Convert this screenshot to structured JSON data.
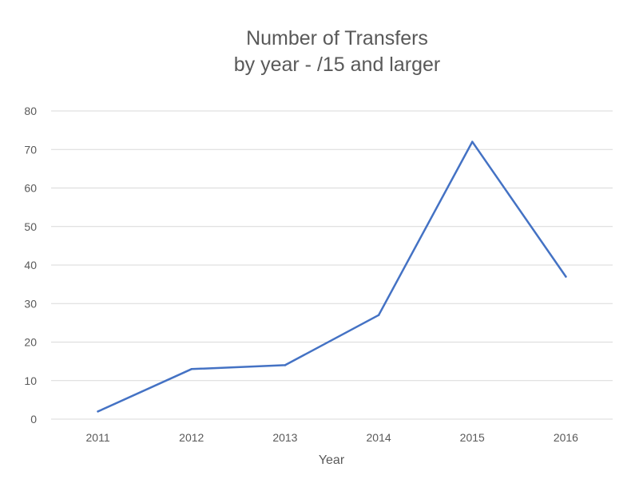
{
  "chart_data": {
    "type": "line",
    "title_lines": [
      "Number of Transfers",
      "by year - /15 and larger"
    ],
    "xlabel": "Year",
    "ylabel": "",
    "categories": [
      "2011",
      "2012",
      "2013",
      "2014",
      "2015",
      "2016"
    ],
    "series": [
      {
        "values": [
          2,
          13,
          14,
          27,
          72,
          37
        ],
        "color": "#4472c4"
      }
    ],
    "ylim": [
      0,
      80
    ],
    "yticks": [
      0,
      10,
      20,
      30,
      40,
      50,
      60,
      70,
      80
    ],
    "grid": true,
    "legend": "none"
  }
}
